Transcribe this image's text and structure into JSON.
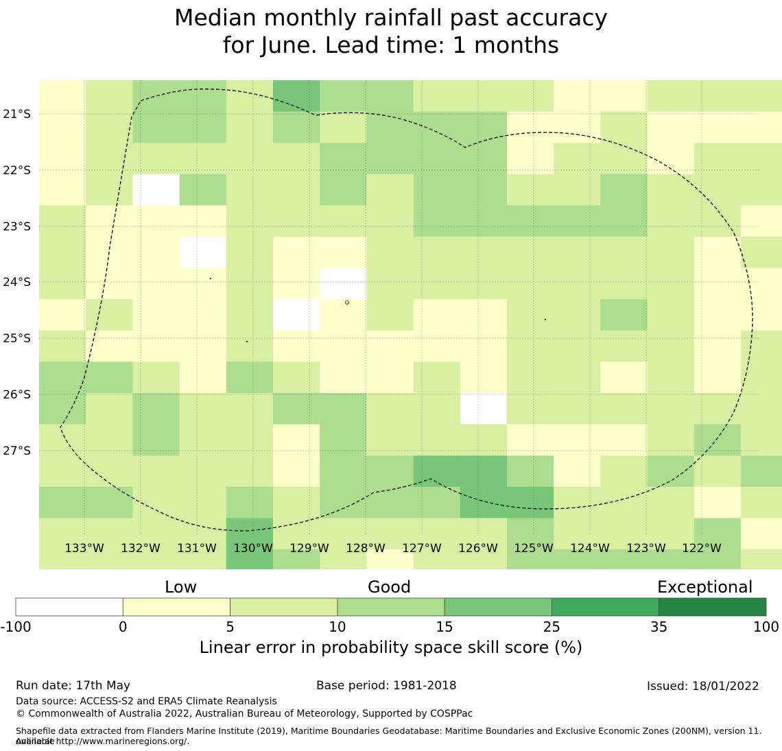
{
  "title_line1": "Median monthly rainfall past accuracy",
  "title_line2": "for June. Lead time: 1 months",
  "x_tick_labels": [
    "133°W",
    "132°W",
    "131°W",
    "130°W",
    "129°W",
    "128°W",
    "127°W",
    "126°W",
    "125°W",
    "124°W",
    "123°W",
    "122°W"
  ],
  "y_tick_labels": [
    "21°S",
    "22°S",
    "23°S",
    "24°S",
    "25°S",
    "26°S",
    "27°S"
  ],
  "legend": {
    "categories": [
      "Low",
      "Good",
      "Exceptional"
    ],
    "bins": [
      {
        "from": -100,
        "to": 0,
        "color": "#ffffff"
      },
      {
        "from": 0,
        "to": 5,
        "color": "#ffffcc"
      },
      {
        "from": 5,
        "to": 10,
        "color": "#d9f0a3"
      },
      {
        "from": 10,
        "to": 15,
        "color": "#addd8e"
      },
      {
        "from": 15,
        "to": 25,
        "color": "#78c679"
      },
      {
        "from": 25,
        "to": 35,
        "color": "#41ab5d"
      },
      {
        "from": 35,
        "to": 100,
        "color": "#238443"
      }
    ],
    "tick_labels": [
      "-100",
      "0",
      "5",
      "10",
      "15",
      "25",
      "35",
      "100"
    ],
    "title": "Linear error in probability space skill score (%)"
  },
  "grid_values": [
    [
      1,
      2,
      3,
      3,
      2,
      4,
      3,
      3,
      2,
      2,
      2,
      1,
      1,
      2,
      2,
      2
    ],
    [
      1,
      2,
      3,
      3,
      2,
      3,
      2,
      3,
      3,
      3,
      1,
      1,
      2,
      1,
      1,
      1
    ],
    [
      1,
      2,
      2,
      2,
      2,
      2,
      3,
      3,
      3,
      3,
      1,
      2,
      2,
      1,
      2,
      2
    ],
    [
      1,
      2,
      0,
      3,
      2,
      2,
      3,
      2,
      3,
      3,
      2,
      2,
      3,
      2,
      2,
      2
    ],
    [
      2,
      1,
      1,
      1,
      2,
      2,
      2,
      2,
      3,
      3,
      3,
      3,
      3,
      2,
      2,
      1
    ],
    [
      2,
      1,
      1,
      0,
      2,
      1,
      1,
      2,
      2,
      2,
      2,
      2,
      2,
      2,
      1,
      2
    ],
    [
      2,
      1,
      1,
      1,
      2,
      1,
      0,
      2,
      2,
      2,
      2,
      2,
      2,
      2,
      1,
      1
    ],
    [
      1,
      2,
      1,
      1,
      2,
      0,
      1,
      2,
      1,
      1,
      2,
      2,
      3,
      2,
      1,
      1
    ],
    [
      2,
      1,
      1,
      1,
      2,
      1,
      1,
      1,
      1,
      1,
      2,
      2,
      2,
      2,
      1,
      2
    ],
    [
      3,
      3,
      2,
      1,
      3,
      2,
      1,
      1,
      2,
      1,
      2,
      2,
      1,
      2,
      1,
      2
    ],
    [
      3,
      2,
      3,
      2,
      2,
      3,
      3,
      2,
      2,
      0,
      2,
      2,
      2,
      2,
      2,
      2
    ],
    [
      2,
      2,
      3,
      2,
      2,
      1,
      3,
      2,
      2,
      2,
      1,
      1,
      1,
      2,
      3,
      2
    ],
    [
      2,
      2,
      2,
      2,
      2,
      1,
      3,
      3,
      4,
      4,
      3,
      1,
      2,
      3,
      2,
      3
    ],
    [
      3,
      3,
      2,
      2,
      3,
      2,
      3,
      3,
      3,
      4,
      4,
      2,
      2,
      2,
      1,
      2
    ],
    [
      2,
      2,
      2,
      2,
      4,
      2,
      2,
      2,
      2,
      2,
      3,
      2,
      2,
      2,
      3,
      1
    ],
    [
      2,
      2,
      2,
      2,
      4,
      3,
      2,
      1,
      2,
      2,
      3,
      3,
      3,
      3,
      3,
      2
    ]
  ],
  "footer": {
    "run_date": "Run date: 17th May",
    "base_period": "Base period: 1981-2018",
    "issued": "Issued: 18/01/2022",
    "data_source": "Data source: ACCESS-S2 and ERA5 Climate Reanalysis",
    "copyright": "© Commonwealth of Australia 2022, Australian Bureau of Meteorology, Supported by COSPPac",
    "shapefile_1": "Shapefile data extracted from Flanders Marine Institute (2019), Maritime Boundaries Geodatabase: Maritime Boundaries and Exclusive Economic Zones (200NM), version 11. Available",
    "shapefile_2": "online at http://www.marineregions.org/."
  }
}
